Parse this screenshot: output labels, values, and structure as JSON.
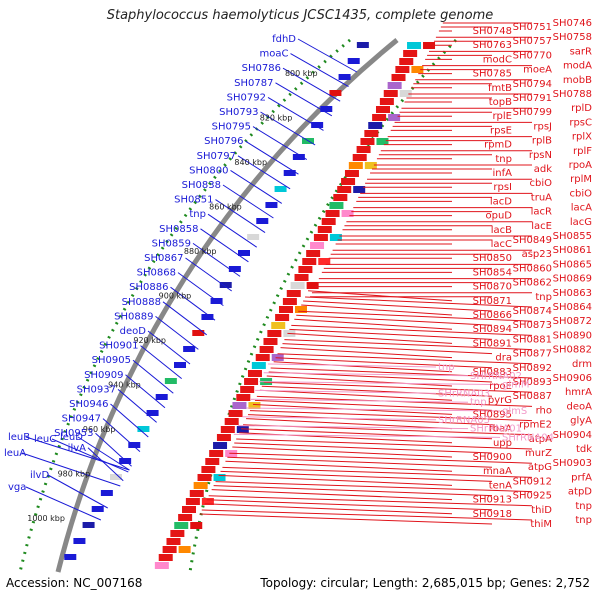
{
  "title": "Staphylococcus haemolyticus JCSC1435, complete genome",
  "footer": {
    "accession": "Accession: NC_007168",
    "topology": "Topology: circular; Length: 2,685,015 bp; Genes: 2,752"
  },
  "colors": {
    "forward_label": "#1a1ad6",
    "reverse_label": "#e0141b",
    "rna_label": "#f29ac9",
    "backbone": "#888888",
    "gc_dots": "#1f8a1f"
  },
  "ticks": [
    "800 kbp",
    "820 kbp",
    "840 kbp",
    "860 kbp",
    "880 kbp",
    "900 kbp",
    "920 kbp",
    "940 kbp",
    "960 kbp",
    "980 kbp",
    "1000 kbp"
  ],
  "left_labels": [
    "fdhD",
    "moaC",
    "SH0786",
    "SH0787",
    "SH0792",
    "SH0793",
    "SH0795",
    "SH0796",
    "SH0797",
    "SH0800",
    "SH0838",
    "SH0851",
    "tnp",
    "SH0858",
    "SH0859",
    "SH0867",
    "SH0868",
    "SH0886",
    "SH0888",
    "SH0889",
    "deoD",
    "SH0901",
    "SH0905",
    "SH0909",
    "SH0937",
    "SH0946",
    "SH0947",
    "SH0953",
    "ilvA",
    "leuB",
    "leuC",
    "leuD",
    "leuA",
    "ilvD",
    "vga"
  ],
  "right_labels": [
    "SH0746",
    "SH0751",
    "SH0748",
    "SH0758",
    "SH0757",
    "SH0763",
    "sarR",
    "SH0770",
    "modC",
    "modA",
    "moeA",
    "SH0785",
    "mobB",
    "SH0794",
    "fmtB",
    "SH0788",
    "SH0791",
    "topB",
    "rplD",
    "SH0799",
    "rplE",
    "rpsC",
    "rpsJ",
    "rpsE",
    "rplX",
    "rplB",
    "rpmD",
    "rplF",
    "rpsN",
    "tnp",
    "rpoA",
    "adk",
    "infA",
    "rplM",
    "cbiO",
    "rpsI",
    "cbiO",
    "truA",
    "lacD",
    "lacA",
    "lacR",
    "opuD",
    "lacG",
    "lacE",
    "lacB",
    "SH0855",
    "SH0849",
    "lacC",
    "SH0861",
    "asp23",
    "SH0850",
    "SH0865",
    "SH0860",
    "SH0854",
    "SH0869",
    "SH0862",
    "SH0870",
    "SH0863",
    "tnp",
    "SH0871",
    "SH0864",
    "SH0874",
    "SH0866",
    "SH0872",
    "SH0873",
    "SH0894",
    "SH0890",
    "SH0881",
    "SH0891",
    "SH0882",
    "SH0877",
    "dra",
    "drm",
    "SH0892",
    "SH0883",
    "SH0906",
    "SH0893",
    "rpoE",
    "hmrA",
    "SH0887",
    "pyrG",
    "deoA",
    "rho",
    "SH0895",
    "glyA",
    "rpmE2",
    "fbaA",
    "SH0904",
    "atpA",
    "upp",
    "tdk",
    "murZ",
    "SH0900",
    "SH0903",
    "atpG",
    "mnaA",
    "prfA",
    "SH0912",
    "tenA",
    "atpD",
    "SH0925",
    "SH0913",
    "tnp",
    "thiD",
    "SH0918",
    "tnp",
    "thiM"
  ],
  "rna_labels": [
    "tnp",
    "SHrRNA02",
    "glmM",
    "SHrRNA03",
    "tnp",
    "glmS",
    "SHrRNA03",
    "SHrRNA01",
    "SHrRNA04"
  ]
}
